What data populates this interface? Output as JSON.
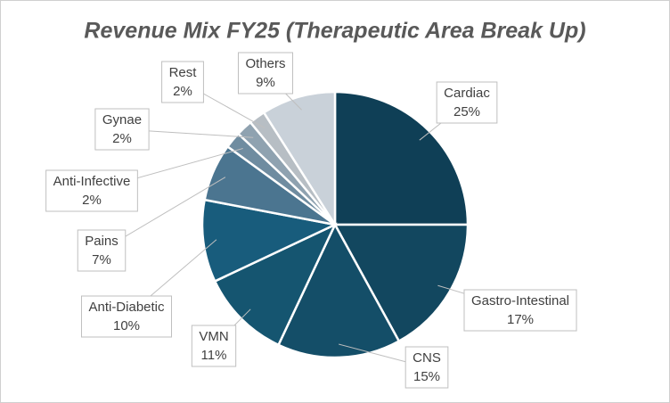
{
  "chart_data": {
    "type": "pie",
    "title": "Revenue Mix FY25 (Therapeutic Area Break Up)",
    "categories": [
      "Cardiac",
      "Gastro-Intestinal",
      "CNS",
      "VMN",
      "Anti-Diabetic",
      "Pains",
      "Anti-Infective",
      "Gynae",
      "Rest",
      "Others"
    ],
    "values": [
      25,
      17,
      15,
      11,
      10,
      7,
      2,
      2,
      2,
      9
    ],
    "value_labels": [
      "25%",
      "17%",
      "15%",
      "11%",
      "10%",
      "7%",
      "2%",
      "2%",
      "2%",
      "9%"
    ],
    "colors": [
      "#0f3f56",
      "#12475f",
      "#144e68",
      "#155570",
      "#185c7c",
      "#4b7590",
      "#6f8ca0",
      "#8fa2b0",
      "#b7bec4",
      "#c9d1d9"
    ]
  }
}
